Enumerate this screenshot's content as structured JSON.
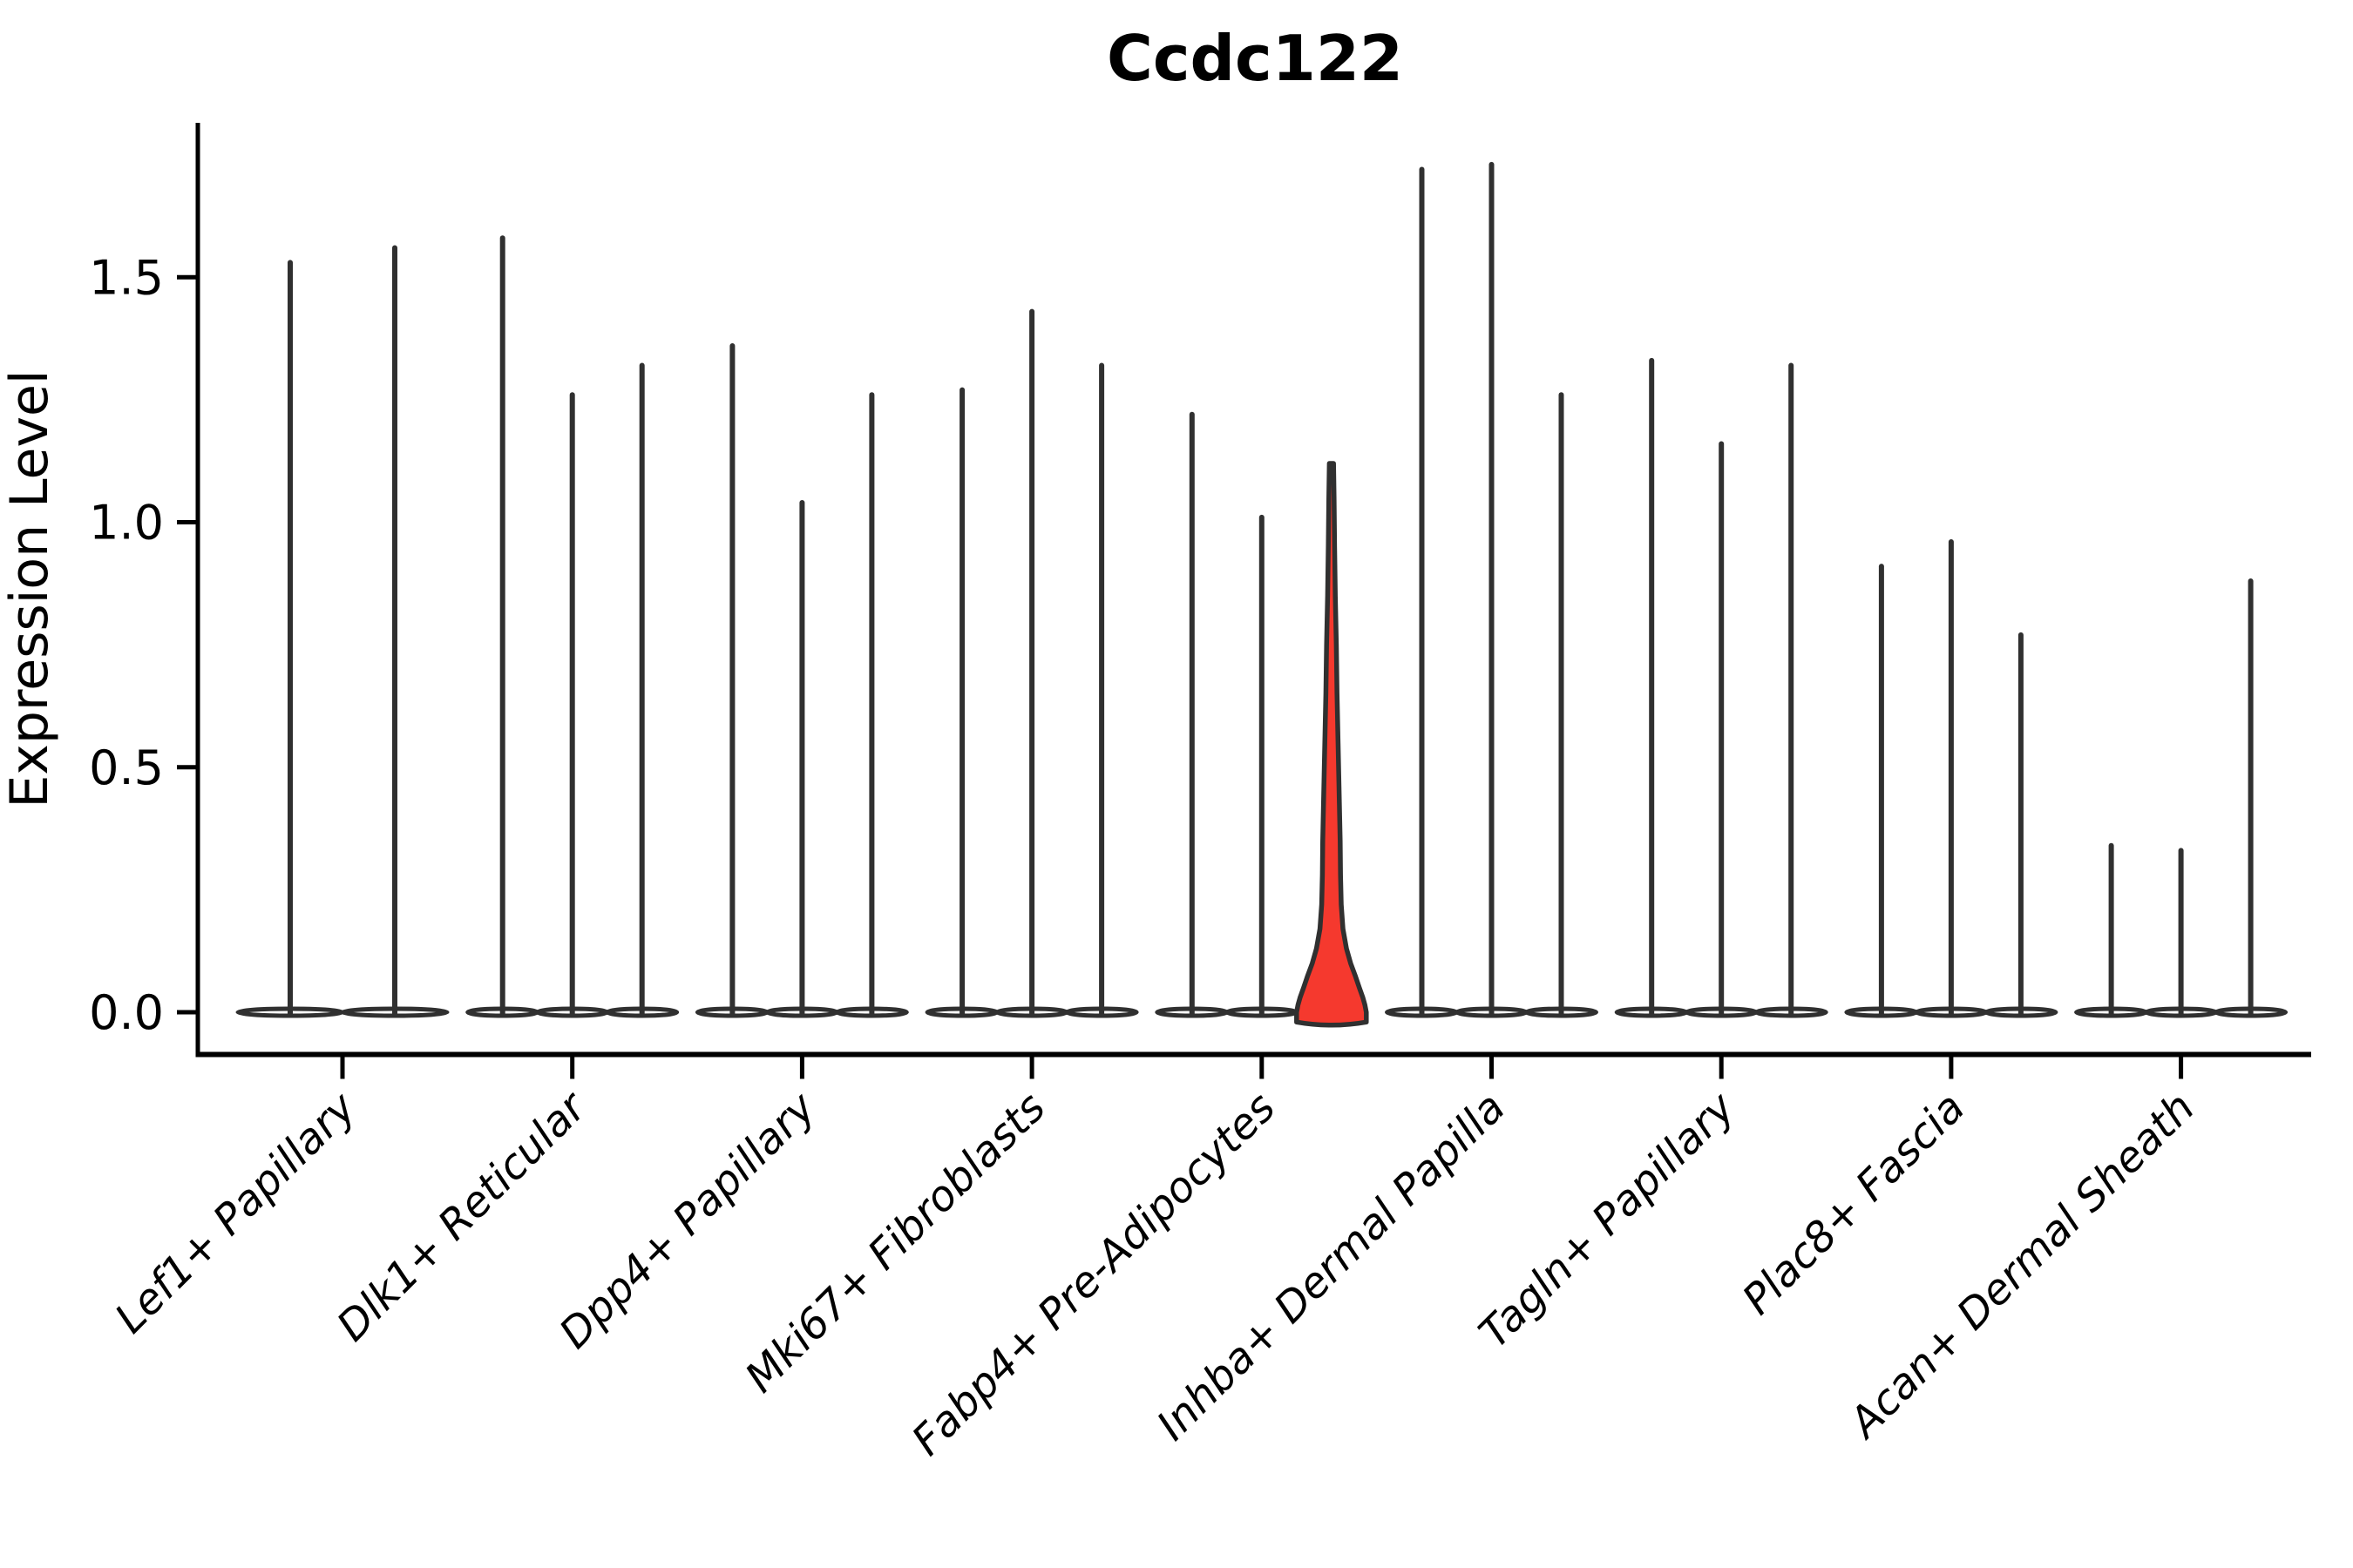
{
  "chart_data": {
    "type": "violin",
    "title": "Ccdc122",
    "ylabel": "Expression Level",
    "xlabel": "",
    "ytick_labels": [
      "0.0",
      "0.5",
      "1.0",
      "1.5"
    ],
    "yticks": [
      0.0,
      0.5,
      1.0,
      1.5
    ],
    "ylim": [
      -0.085,
      1.816
    ],
    "grid": false,
    "legend": null,
    "axis_color": "#000000",
    "violin_edge_color": "#303030",
    "violin_fill_color": "#ffffff",
    "highlight_fill_color": "#f5392e",
    "groups": [
      {
        "label": "Lef1+ Papillary",
        "violins": [
          {
            "max": 1.53
          },
          {
            "max": 1.56
          }
        ]
      },
      {
        "label": "Dlk1+ Reticular",
        "violins": [
          {
            "max": 1.58
          },
          {
            "max": 1.26
          },
          {
            "max": 1.32
          }
        ]
      },
      {
        "label": "Dpp4+ Papillary",
        "violins": [
          {
            "max": 1.36
          },
          {
            "max": 1.04
          },
          {
            "max": 1.26
          }
        ]
      },
      {
        "label": "Mki67+ Fibroblasts",
        "violins": [
          {
            "max": 1.27
          },
          {
            "max": 1.43
          },
          {
            "max": 1.32
          }
        ]
      },
      {
        "label": "Fabp4+ Pre-Adipocytes",
        "violins": [
          {
            "max": 1.22
          },
          {
            "max": 1.01
          },
          {
            "max": 1.12,
            "highlighted": true
          }
        ]
      },
      {
        "label": "Inhba+ Dermal Papilla",
        "violins": [
          {
            "max": 1.72
          },
          {
            "max": 1.73
          },
          {
            "max": 1.26
          }
        ]
      },
      {
        "label": "Tagln+ Papillary",
        "violins": [
          {
            "max": 1.33
          },
          {
            "max": 1.16
          },
          {
            "max": 1.32
          }
        ]
      },
      {
        "label": "Plac8+ Fascia",
        "violins": [
          {
            "max": 0.91
          },
          {
            "max": 0.96
          },
          {
            "max": 0.77
          }
        ]
      },
      {
        "label": "Acan+ Dermal Sheath",
        "violins": [
          {
            "max": 0.34
          },
          {
            "max": 0.33
          },
          {
            "max": 0.88
          }
        ]
      }
    ],
    "highlighted_kde_profile": {
      "values": [
        1.12,
        1.05,
        0.95,
        0.85,
        0.75,
        0.65,
        0.55,
        0.45,
        0.35,
        0.28,
        0.22,
        0.17,
        0.13,
        0.1,
        0.075,
        0.05,
        0.03,
        0.015,
        0.0,
        -0.02
      ],
      "width_fracs": [
        0.06,
        0.075,
        0.09,
        0.11,
        0.14,
        0.16,
        0.19,
        0.22,
        0.25,
        0.26,
        0.28,
        0.33,
        0.43,
        0.55,
        0.68,
        0.8,
        0.9,
        0.96,
        1.0,
        1.0
      ]
    }
  }
}
